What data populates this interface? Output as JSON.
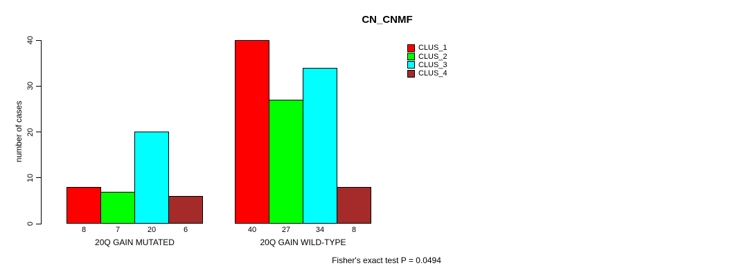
{
  "chart_data": {
    "type": "bar",
    "title": "CN_CNMF",
    "ylabel": "number of cases",
    "xlabel": "",
    "ylim": [
      0,
      40
    ],
    "yticks": [
      0,
      10,
      20,
      30,
      40
    ],
    "grid": false,
    "categories": [
      "20Q GAIN MUTATED",
      "20Q GAIN WILD-TYPE"
    ],
    "series": [
      {
        "name": "CLUS_1",
        "color": "#ff0000",
        "values": [
          8,
          40
        ]
      },
      {
        "name": "CLUS_2",
        "color": "#00ff00",
        "values": [
          7,
          27
        ]
      },
      {
        "name": "CLUS_3",
        "color": "#00ffff",
        "values": [
          20,
          34
        ]
      },
      {
        "name": "CLUS_4",
        "color": "#a52a2a",
        "values": [
          6,
          8
        ]
      }
    ],
    "legend_position": "top-right",
    "bar_outline_color": "#000000",
    "annotation": "Fisher's exact test P = 0.0494"
  }
}
